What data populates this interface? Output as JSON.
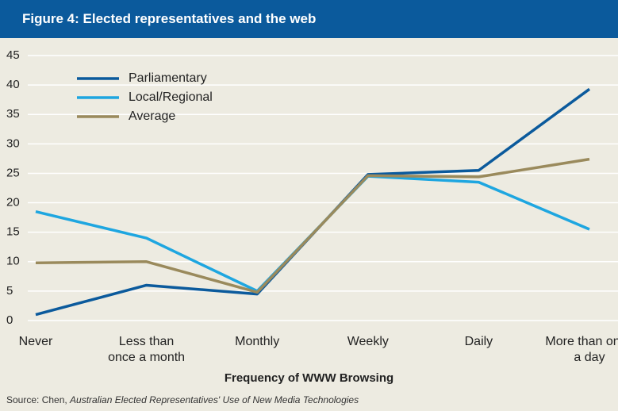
{
  "chart_data": {
    "type": "line",
    "title": "Figure 4: Elected representatives and the web",
    "x_label": "Frequency of WWW Browsing",
    "source_prefix": "Source: Chen, ",
    "source_title": "Australian Elected Representatives' Use of New Media Technologies",
    "categories": [
      "Never",
      "Less than\nonce a month",
      "Monthly",
      "Weekly",
      "Daily",
      "More than once\na day"
    ],
    "series": [
      {
        "name": "Parliamentary",
        "color": "#0b5a9c",
        "values": [
          1,
          6,
          4.5,
          24.8,
          25.5,
          39.3
        ]
      },
      {
        "name": "Local/Regional",
        "color": "#1ea6e0",
        "values": [
          18.5,
          14,
          5,
          24.5,
          23.5,
          15.5
        ]
      },
      {
        "name": "Average",
        "color": "#9a8a5c",
        "values": [
          9.8,
          10,
          4.8,
          24.6,
          24.4,
          27.4
        ]
      }
    ],
    "ylim": [
      0,
      45
    ],
    "yticks": [
      0,
      5,
      10,
      15,
      20,
      25,
      30,
      35,
      40,
      45
    ],
    "grid": true
  }
}
